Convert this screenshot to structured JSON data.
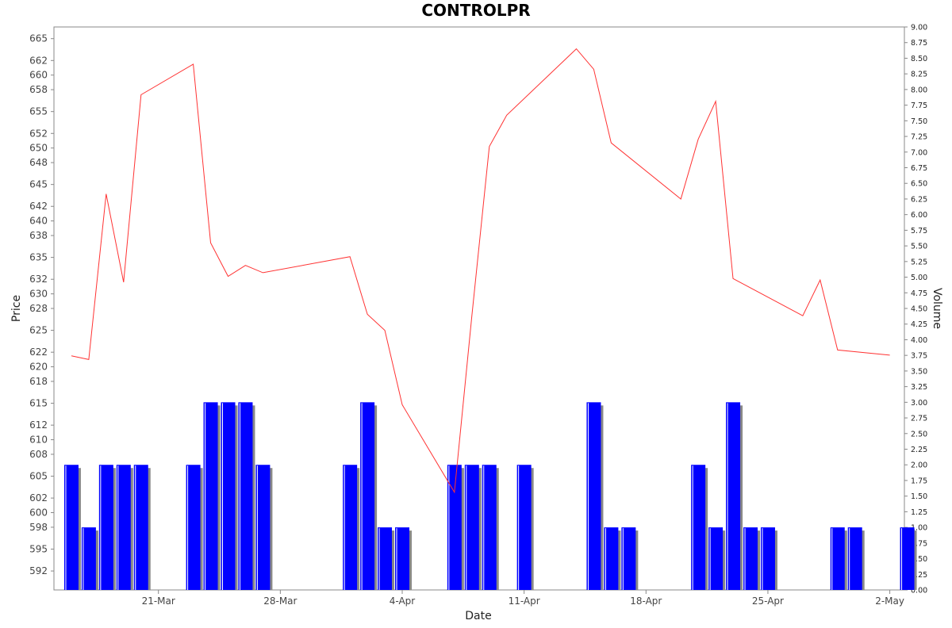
{
  "chart_data": {
    "type": "bar+line",
    "title": "CONTROLPR",
    "xlabel": "Date",
    "ylabel_left": "Price",
    "ylabel_right": "Volume",
    "x_ticks": [
      "21-Mar",
      "28-Mar",
      "4-Apr",
      "11-Apr",
      "18-Apr",
      "25-Apr",
      "2-May"
    ],
    "y_left_ticks": [
      "592",
      "595",
      "598",
      "600",
      "602",
      "605",
      "608",
      "610",
      "612",
      "615",
      "618",
      "620",
      "622",
      "625",
      "628",
      "630",
      "632",
      "635",
      "638",
      "640",
      "642",
      "645",
      "648",
      "650",
      "652",
      "655",
      "658",
      "660",
      "662",
      "665"
    ],
    "y_right_ticks": [
      "0.00",
      "0.25",
      "0.50",
      "0.75",
      "1.00",
      "1.25",
      "1.50",
      "1.75",
      "2.00",
      "2.25",
      "2.50",
      "2.75",
      "3.00",
      "3.25",
      "3.50",
      "3.75",
      "4.00",
      "4.25",
      "4.50",
      "4.75",
      "5.00",
      "5.25",
      "5.50",
      "5.75",
      "6.00",
      "6.25",
      "6.50",
      "6.75",
      "7.00",
      "7.25",
      "7.50",
      "7.75",
      "8.00",
      "8.25",
      "8.50",
      "8.75",
      "9.00"
    ],
    "ylim_left": [
      589.4,
      666.6
    ],
    "ylim_right": [
      0,
      9
    ],
    "x_range": [
      "2024-03-15",
      "2024-05-04"
    ],
    "grid": false,
    "price_color": "#ff3333",
    "volume_color": "#0000ff",
    "volume_shadow_color": "#888888",
    "price_series": {
      "name": "Price",
      "x": [
        "2024-03-16",
        "2024-03-17",
        "2024-03-18",
        "2024-03-19",
        "2024-03-20",
        "2024-03-23",
        "2024-03-24",
        "2024-03-25",
        "2024-03-26",
        "2024-03-27",
        "2024-04-01",
        "2024-04-02",
        "2024-04-03",
        "2024-04-04",
        "2024-04-07",
        "2024-04-08",
        "2024-04-09",
        "2024-04-10",
        "2024-04-14",
        "2024-04-15",
        "2024-04-16",
        "2024-04-20",
        "2024-04-21",
        "2024-04-22",
        "2024-04-23",
        "2024-04-27",
        "2024-04-28",
        "2024-04-29",
        "2024-05-02"
      ],
      "y": [
        621.5,
        621.0,
        643.7,
        631.6,
        657.3,
        661.5,
        637.0,
        632.4,
        633.9,
        632.9,
        635.1,
        627.2,
        625.0,
        614.8,
        602.8,
        627.0,
        650.2,
        654.5,
        663.6,
        660.8,
        650.7,
        643.0,
        651.2,
        656.4,
        632.1,
        627.0,
        631.9,
        622.3,
        621.6
      ]
    },
    "volume_series": {
      "name": "Volume",
      "x": [
        "2024-03-16",
        "2024-03-17",
        "2024-03-18",
        "2024-03-19",
        "2024-03-20",
        "2024-03-23",
        "2024-03-24",
        "2024-03-25",
        "2024-03-26",
        "2024-03-27",
        "2024-04-01",
        "2024-04-02",
        "2024-04-03",
        "2024-04-04",
        "2024-04-07",
        "2024-04-08",
        "2024-04-09",
        "2024-04-11",
        "2024-04-15",
        "2024-04-16",
        "2024-04-17",
        "2024-04-21",
        "2024-04-22",
        "2024-04-23",
        "2024-04-24",
        "2024-04-25",
        "2024-04-29",
        "2024-04-30",
        "2024-05-03"
      ],
      "y": [
        2,
        1,
        2,
        2,
        2,
        2,
        3,
        3,
        3,
        2,
        2,
        3,
        1,
        1,
        2,
        2,
        2,
        2,
        3,
        1,
        1,
        2,
        1,
        3,
        1,
        1,
        1,
        1,
        1
      ]
    }
  }
}
